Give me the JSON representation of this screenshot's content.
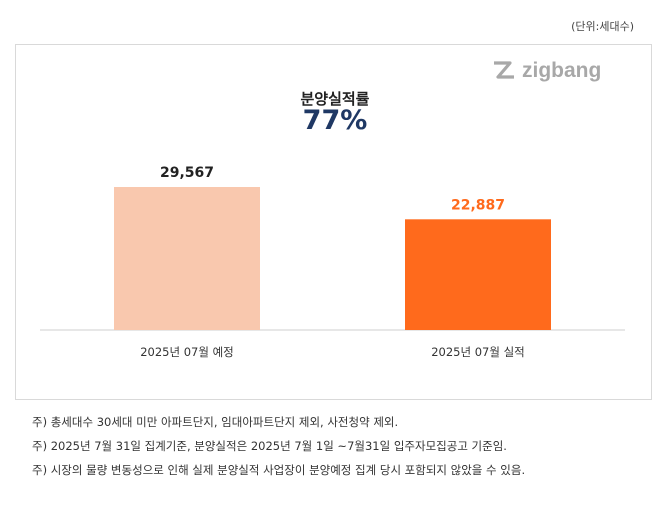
{
  "unit_label": "(단위:세대수)",
  "logo_text": "zigbang",
  "headline": {
    "title": "분양실적률",
    "value": "77%"
  },
  "colors": {
    "plan_bar": "#f9c8ae",
    "actual_bar": "#ff6a1c",
    "value_plan": "#222222",
    "value_actual": "#ff6a1c",
    "headline_value": "#1f3864"
  },
  "chart_data": {
    "type": "bar",
    "categories": [
      "2025년 07월 예정",
      "2025년 07월 실적"
    ],
    "values": [
      29567,
      22887
    ],
    "value_labels": [
      "29,567",
      "22,887"
    ],
    "ylim": [
      0,
      35000
    ],
    "grid": false,
    "legend": "none"
  },
  "footnotes": [
    "주) 총세대수 30세대 미만 아파트단지, 임대아파트단지 제외, 사전청약 제외.",
    "주) 2025년 7월 31일 집계기준, 분양실적은 2025년 7월 1일 ~7월31일 입주자모집공고 기준임.",
    "주) 시장의 물량 변동성으로 인해 실제 분양실적 사업장이 분양예정 집계 당시 포함되지 않았을 수 있음."
  ]
}
